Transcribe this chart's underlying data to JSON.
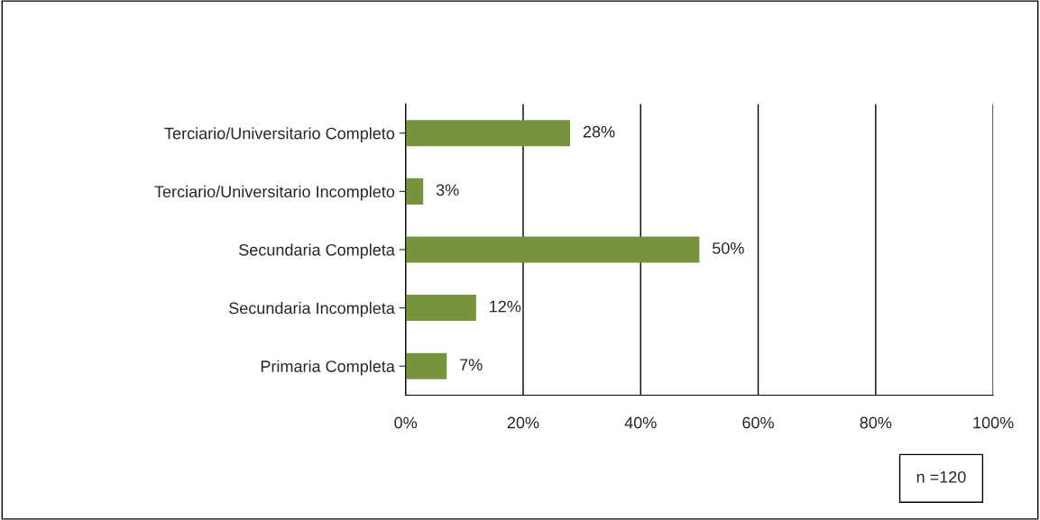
{
  "chart_data": {
    "type": "bar",
    "orientation": "horizontal",
    "categories": [
      "Terciario/Universitario Completo",
      "Terciario/Universitario Incompleto",
      "Secundaria Completa",
      "Secundaria Incompleta",
      "Primaria Completa"
    ],
    "values": [
      28,
      3,
      50,
      12,
      7
    ],
    "value_labels": [
      "28%",
      "3%",
      "50%",
      "12%",
      "7%"
    ],
    "color": "#77933c",
    "xlim": [
      0,
      100
    ],
    "xticks": [
      {
        "value": 0,
        "label": "0%"
      },
      {
        "value": 20,
        "label": "20%"
      },
      {
        "value": 40,
        "label": "40%"
      },
      {
        "value": 60,
        "label": "60%"
      },
      {
        "value": 80,
        "label": "80%"
      },
      {
        "value": 100,
        "label": "100%"
      }
    ],
    "grid": "x",
    "annotations": [
      "n =120"
    ]
  }
}
